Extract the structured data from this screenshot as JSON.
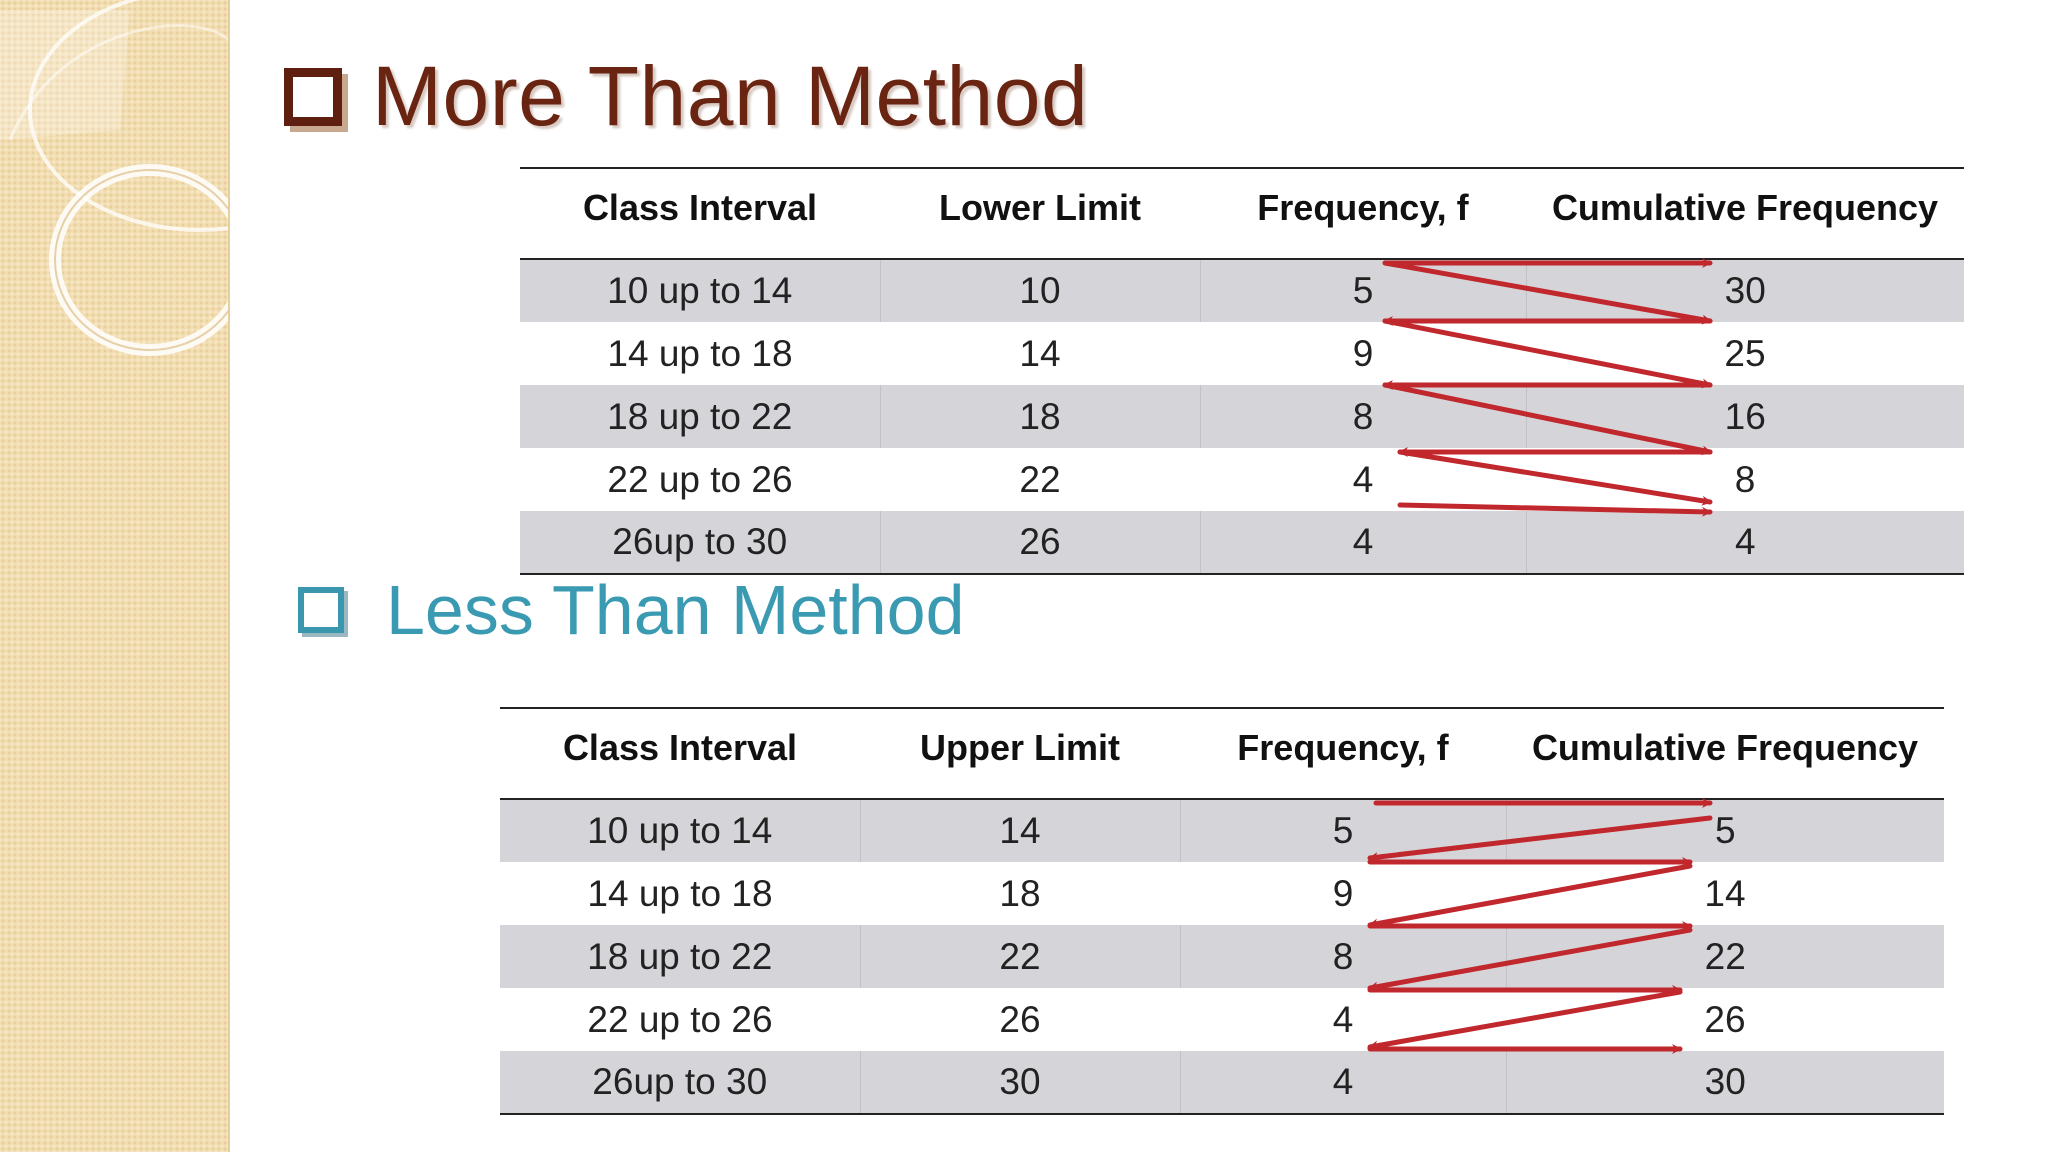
{
  "more_than": {
    "title": "More Than Method",
    "headers": [
      "Class Interval",
      "Lower Limit",
      "Frequency, f",
      "Cumulative Frequency"
    ],
    "rows": [
      [
        "10 up to 14",
        "10",
        "5",
        "30"
      ],
      [
        "14 up to 18",
        "14",
        "9",
        "25"
      ],
      [
        "18 up to 22",
        "18",
        "8",
        "16"
      ],
      [
        "22 up to 26",
        "22",
        "4",
        "8"
      ],
      [
        "26up to 30",
        "26",
        "4",
        "4"
      ]
    ]
  },
  "less_than": {
    "title": "Less Than Method",
    "headers": [
      "Class Interval",
      "Upper Limit",
      "Frequency, f",
      "Cumulative Frequency"
    ],
    "rows": [
      [
        "10 up to 14",
        "14",
        "5",
        "5"
      ],
      [
        "14 up to 18",
        "18",
        "9",
        "14"
      ],
      [
        "18 up to 22",
        "22",
        "8",
        "22"
      ],
      [
        "22 up to 26",
        "26",
        "4",
        "26"
      ],
      [
        "26up to 30",
        "30",
        "4",
        "30"
      ]
    ]
  },
  "colors": {
    "title_more": "#6a2412",
    "title_less": "#3a9ab2",
    "arrow": "#c0282d",
    "row_shade": "#d5d5d9",
    "sidebar": "#f2ddb0"
  }
}
